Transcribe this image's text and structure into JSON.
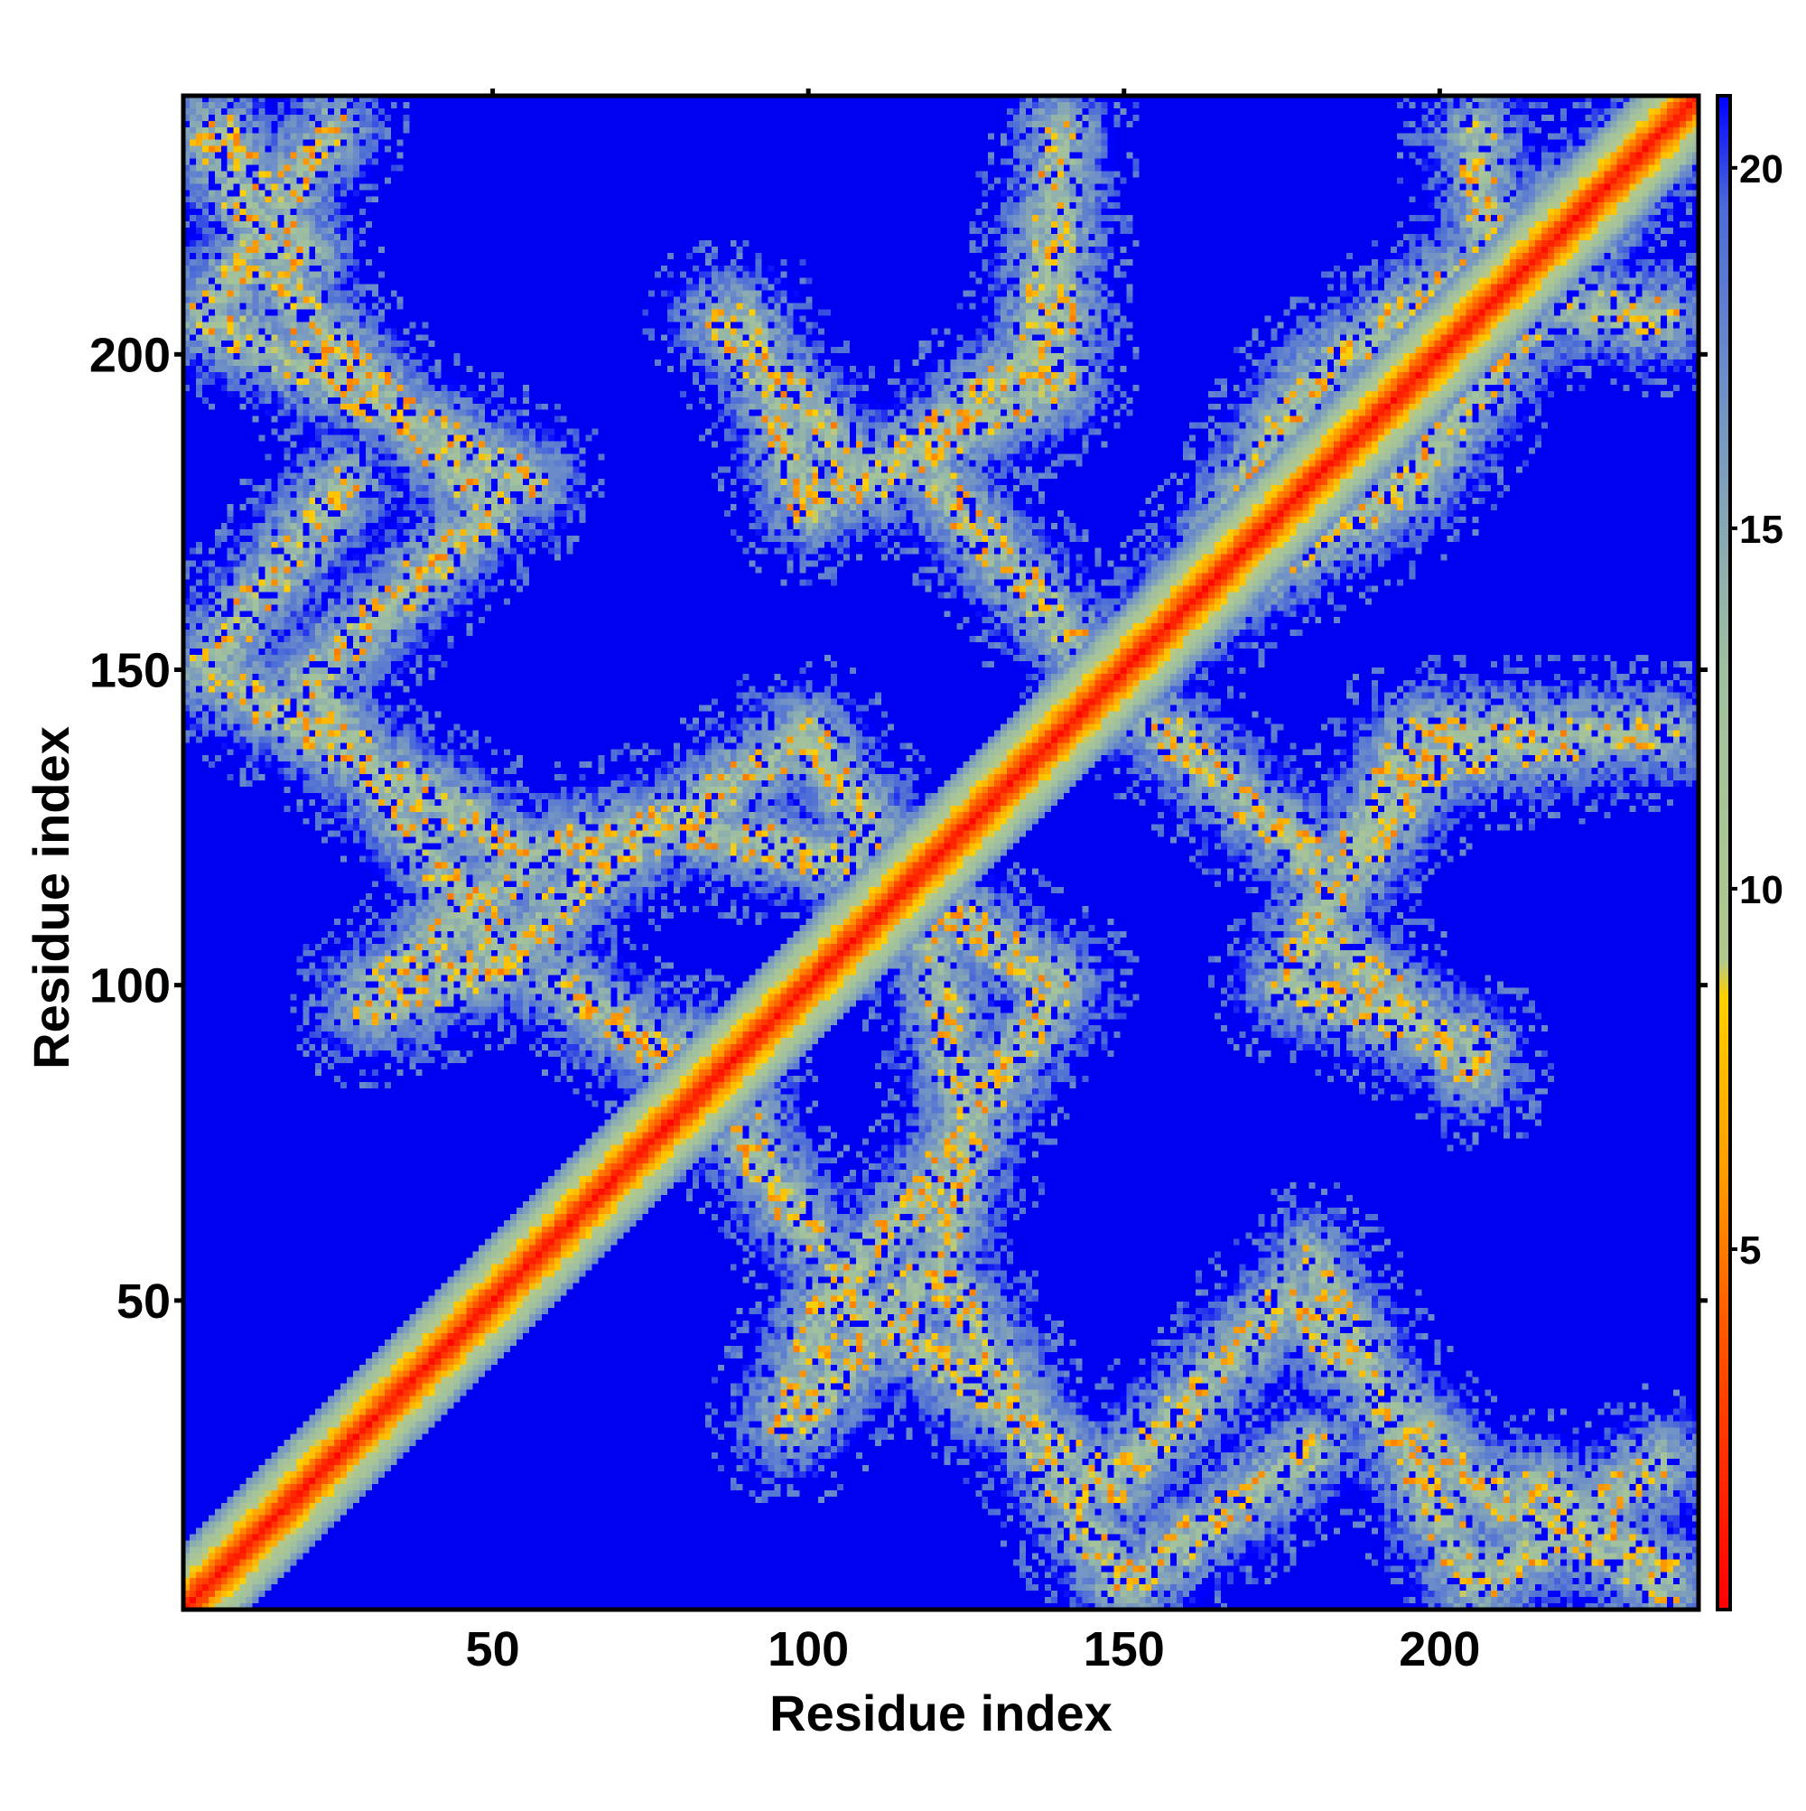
{
  "chart_data": {
    "type": "heatmap",
    "title": "",
    "xlabel": "Residue index",
    "ylabel": "Residue index",
    "xlim": [
      1,
      241
    ],
    "ylim": [
      1,
      241
    ],
    "xticks": [
      50,
      100,
      150,
      200
    ],
    "yticks": [
      50,
      100,
      150,
      200
    ],
    "colorbar": {
      "ticks": [
        5,
        10,
        15,
        20
      ],
      "range": [
        0,
        21
      ],
      "colors": [
        {
          "value": 0,
          "color": "#ff0000"
        },
        {
          "value": 4,
          "color": "#ff5a00"
        },
        {
          "value": 6,
          "color": "#ff9b00"
        },
        {
          "value": 8.5,
          "color": "#ffd000"
        },
        {
          "value": 9,
          "color": "#b2c98c"
        },
        {
          "value": 13,
          "color": "#a0c0a0"
        },
        {
          "value": 17,
          "color": "#6e8fc8"
        },
        {
          "value": 19.5,
          "color": "#4a6ad8"
        },
        {
          "value": 21,
          "color": "#0000ff"
        }
      ],
      "background_color": "#0000f0"
    },
    "matrix_description_data": {
      "size": 241,
      "main_diagonal": true,
      "contact_bands": [
        {
          "from": [
            4,
            206
          ],
          "to": [
            24,
            236
          ]
        },
        {
          "from": [
            4,
            206
          ],
          "to": [
            56,
            180
          ]
        },
        {
          "from": [
            26,
            180
          ],
          "to": [
            4,
            150
          ]
        },
        {
          "from": [
            4,
            150
          ],
          "to": [
            56,
            120
          ]
        },
        {
          "from": [
            56,
            120
          ],
          "to": [
            30,
            98
          ]
        },
        {
          "from": [
            76,
            126
          ],
          "to": [
            54,
            120
          ]
        },
        {
          "from": [
            76,
            126
          ],
          "to": [
            112,
            118
          ]
        },
        {
          "from": [
            112,
            118
          ],
          "to": [
            140,
            100
          ]
        },
        {
          "from": [
            140,
            100
          ],
          "to": [
            118,
            66
          ]
        },
        {
          "from": [
            118,
            66
          ],
          "to": [
            104,
            52
          ]
        },
        {
          "from": [
            104,
            52
          ],
          "to": [
            96,
            30
          ]
        },
        {
          "from": [
            104,
            52
          ],
          "to": [
            148,
            20
          ]
        },
        {
          "from": [
            148,
            20
          ],
          "to": [
            176,
            50
          ]
        },
        {
          "from": [
            176,
            50
          ],
          "to": [
            206,
            20
          ]
        },
        {
          "from": [
            206,
            20
          ],
          "to": [
            236,
            4
          ]
        },
        {
          "from": [
            216,
            20
          ],
          "to": [
            236,
            6
          ]
        },
        {
          "from": [
            176,
            100
          ],
          "to": [
            206,
            90
          ]
        },
        {
          "from": [
            176,
            100
          ],
          "to": [
            196,
            140
          ]
        },
        {
          "from": [
            196,
            140
          ],
          "to": [
            236,
            140
          ]
        },
        {
          "from": [
            146,
            150
          ],
          "to": [
            196,
            180
          ]
        },
        {
          "from": [
            196,
            180
          ],
          "to": [
            236,
            236
          ]
        },
        {
          "from": [
            206,
            210
          ],
          "to": [
            236,
            206
          ]
        },
        {
          "from": [
            86,
            206
          ],
          "to": [
            110,
            180
          ]
        },
        {
          "from": [
            110,
            180
          ],
          "to": [
            136,
            200
          ]
        },
        {
          "from": [
            136,
            200
          ],
          "to": [
            140,
            230
          ]
        },
        {
          "from": [
            60,
            100
          ],
          "to": [
            90,
            80
          ]
        },
        {
          "from": [
            120,
            180
          ],
          "to": [
            146,
            150
          ]
        }
      ]
    }
  }
}
